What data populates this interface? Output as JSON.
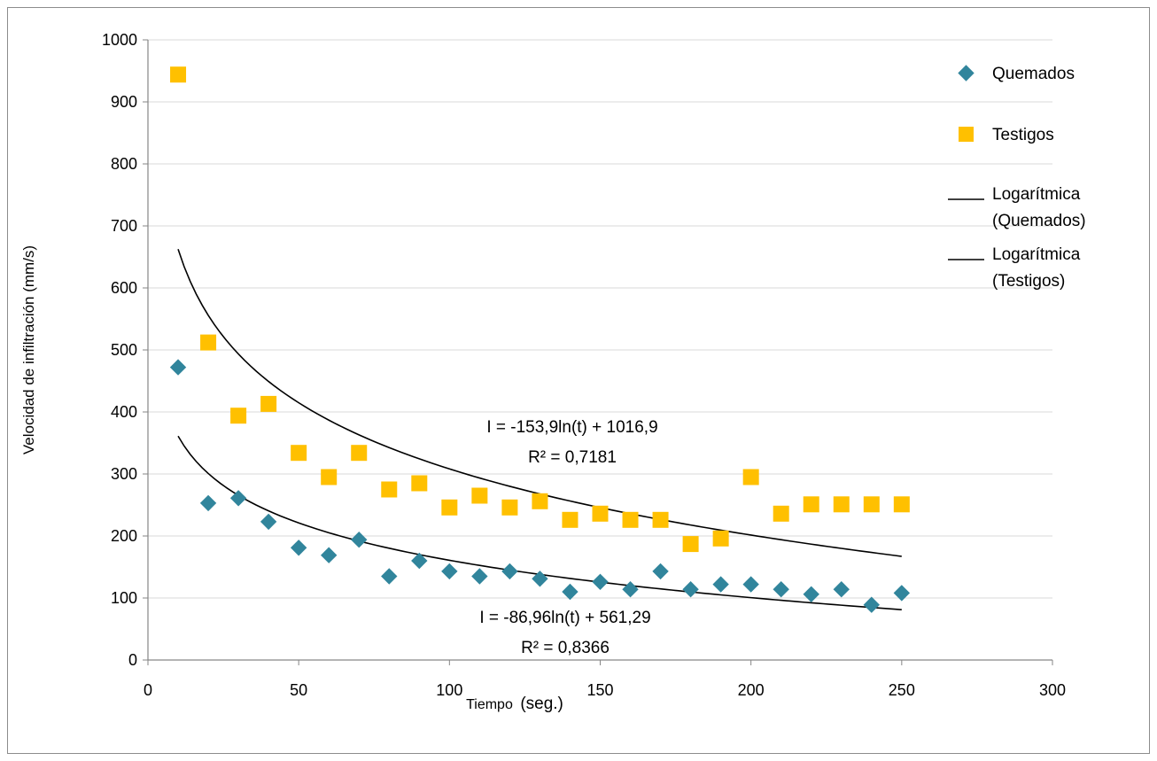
{
  "chart_data": {
    "type": "scatter",
    "title": "",
    "xlabel_prefix": "Tiempo",
    "xlabel_suffix": "(seg.)",
    "ylabel": "Velocidad de infiltración (mm/s)",
    "xlim": [
      0,
      300
    ],
    "ylim": [
      0,
      1000
    ],
    "xticks": [
      0,
      50,
      100,
      150,
      200,
      250,
      300
    ],
    "yticks": [
      0,
      100,
      200,
      300,
      400,
      500,
      600,
      700,
      800,
      900,
      1000
    ],
    "grid": "horizontal",
    "legend_position": "right",
    "series": [
      {
        "name": "Quemados",
        "marker": "diamond",
        "color": "#31859c",
        "x": [
          10,
          20,
          30,
          40,
          50,
          60,
          70,
          80,
          90,
          100,
          110,
          120,
          130,
          140,
          150,
          160,
          170,
          180,
          190,
          200,
          210,
          220,
          230,
          240,
          250
        ],
        "y": [
          472,
          253,
          261,
          223,
          181,
          169,
          194,
          135,
          160,
          143,
          135,
          143,
          131,
          110,
          126,
          114,
          143,
          114,
          122,
          122,
          114,
          106,
          114,
          89,
          108
        ]
      },
      {
        "name": "Testigos",
        "marker": "square",
        "color": "#ffc000",
        "x": [
          10,
          20,
          30,
          40,
          50,
          60,
          70,
          80,
          90,
          100,
          110,
          120,
          130,
          140,
          150,
          160,
          170,
          180,
          190,
          200,
          210,
          220,
          230,
          240,
          250
        ],
        "y": [
          944,
          512,
          394,
          413,
          334,
          295,
          334,
          275,
          285,
          246,
          265,
          246,
          256,
          226,
          236,
          226,
          226,
          187,
          196,
          295,
          236,
          251,
          251,
          251,
          251
        ]
      }
    ],
    "trendlines": [
      {
        "name": "Logarítmica (Quemados)",
        "name_line1": "Logarítmica",
        "name_line2": "(Quemados)",
        "type": "logarithmic",
        "a": -86.96,
        "b": 561.29,
        "x_range": [
          10,
          250
        ],
        "equation": "I = -86,96ln(t) + 561,29",
        "r2": "R² = 0,8366"
      },
      {
        "name": "Logarítmica (Testigos)",
        "name_line1": "Logarítmica",
        "name_line2": "(Testigos)",
        "type": "logarithmic",
        "a": -153.9,
        "b": 1016.9,
        "x_range": [
          10,
          250
        ],
        "equation": "I = -153,9ln(t) + 1016,9",
        "r2": "R² = 0,7181"
      }
    ],
    "colors": {
      "axis": "#868686",
      "grid": "#d9d9d9",
      "trendline": "#000000"
    }
  }
}
